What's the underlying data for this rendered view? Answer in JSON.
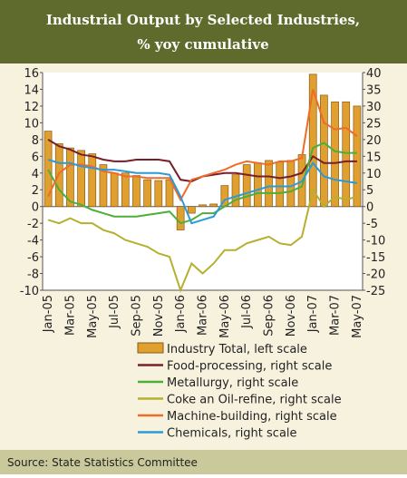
{
  "chart_data": {
    "type": "bar-line",
    "title": "Industrial Output by Selected Industries,",
    "subtitle": "% yoy cumulative",
    "source": "Source: State Statistics Committee",
    "categories": [
      "Jan-05",
      null,
      "Mar-05",
      null,
      "May-05",
      null,
      "Jul-05",
      null,
      "Sep-05",
      null,
      "Nov-05",
      null,
      "Jan-06",
      null,
      "Mar-06",
      null,
      "May-06",
      null,
      "Jul-06",
      null,
      "Sep-06",
      null,
      "Nov-06",
      null,
      "Jan-07",
      null,
      "Mar-07",
      null,
      "May-07"
    ],
    "ylim": [
      -10,
      16
    ],
    "yticks": [
      -10,
      -8,
      -6,
      -4,
      -2,
      0,
      2,
      4,
      6,
      8,
      10,
      12,
      14,
      16
    ],
    "y2lim": [
      -25,
      40
    ],
    "y2ticks": [
      -25,
      -20,
      -15,
      -10,
      -5,
      0,
      5,
      10,
      15,
      20,
      25,
      30,
      35,
      40
    ],
    "series": [
      {
        "name": "Industry Total, left scale",
        "type": "bar",
        "color": "#e0a030",
        "values": [
          9,
          7.5,
          7,
          6.7,
          6.3,
          5,
          4,
          4,
          3.7,
          3.2,
          3.1,
          3.2,
          -2.8,
          -0.8,
          0.2,
          0.3,
          2.5,
          3.8,
          5,
          5.2,
          5.5,
          5.3,
          5.5,
          6.2,
          15.8,
          13.3,
          12.5,
          12.5,
          12
        ]
      },
      {
        "name": "Food-processing, right scale",
        "type": "line",
        "axis": "y2",
        "color": "#7a1e2a",
        "values": [
          20,
          18,
          17,
          15.5,
          15,
          14,
          13.5,
          13.5,
          14,
          14,
          14,
          13.5,
          8,
          7.5,
          9,
          9.5,
          10,
          10,
          9.5,
          9,
          9,
          8.5,
          9,
          10,
          15,
          13,
          13,
          13.5,
          13.5
        ]
      },
      {
        "name": "Metallurgy, right scale",
        "type": "line",
        "axis": "y2",
        "color": "#4caf3a",
        "values": [
          11,
          5,
          1.5,
          0.5,
          -1,
          -2,
          -3,
          -3,
          -3,
          -2.5,
          -2,
          -1.5,
          -5,
          -4,
          -2,
          -2,
          0,
          2,
          3,
          4,
          4,
          4,
          4.5,
          6,
          17.5,
          19,
          16.5,
          16,
          16
        ]
      },
      {
        "name": "Coke an Oil-refine, right scale",
        "type": "line",
        "axis": "y2",
        "color": "#b5b030",
        "values": [
          -4,
          -5,
          -3.5,
          -5,
          -5,
          -7,
          -8,
          -10,
          -11,
          -12,
          -14,
          -15,
          -25,
          -17,
          -20,
          -17,
          -13,
          -13,
          -11,
          -10,
          -9,
          -11,
          -11.5,
          -9,
          5,
          0,
          3,
          2,
          3
        ]
      },
      {
        "name": "Machine-building, right scale",
        "type": "line",
        "axis": "y2",
        "color": "#f06a28",
        "values": [
          3,
          10,
          12.5,
          12.5,
          12,
          10.5,
          10,
          9,
          9,
          8.5,
          8.5,
          8.5,
          2,
          8,
          9,
          10,
          11,
          12.5,
          13.5,
          13,
          12.5,
          13.5,
          13.5,
          14.5,
          35,
          25,
          23,
          23.5,
          21
        ]
      },
      {
        "name": "Chemicals, right scale",
        "type": "line",
        "axis": "y2",
        "color": "#2a9ad8",
        "values": [
          14,
          13,
          13,
          12,
          11.5,
          11,
          11,
          10.5,
          10,
          10,
          10,
          9.5,
          3,
          -5,
          -4,
          -3,
          2,
          3,
          4,
          5,
          6,
          6,
          6,
          7.5,
          13,
          9,
          8,
          7.5,
          7
        ]
      }
    ]
  }
}
